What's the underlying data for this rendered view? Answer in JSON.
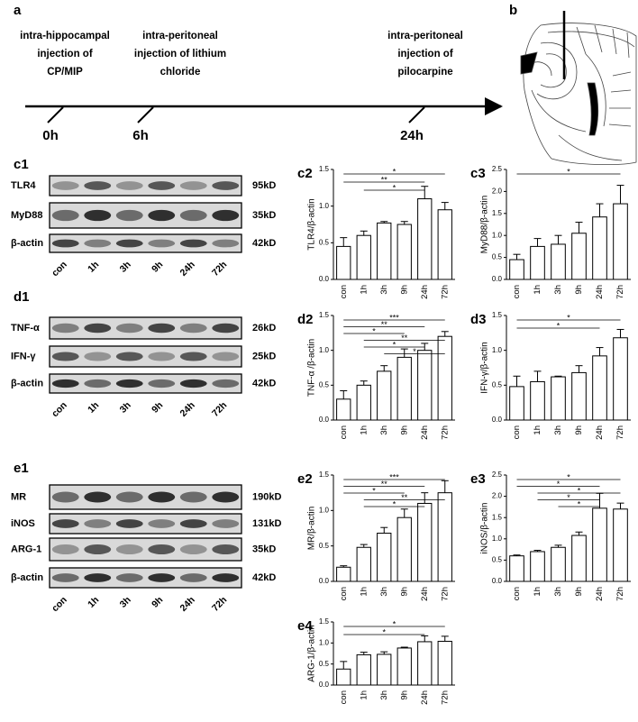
{
  "timeline": {
    "label": "a",
    "events": [
      {
        "lines": [
          "intra-hippocampal",
          "injection of",
          "CP/MIP"
        ],
        "time": "0h"
      },
      {
        "lines": [
          "intra-peritoneal",
          "injection of lithium",
          "chloride"
        ],
        "time": "6h"
      },
      {
        "lines": [
          "intra-peritoneal",
          "injection of",
          "pilocarpine"
        ],
        "time": "24h"
      }
    ]
  },
  "brain": {
    "label": "b"
  },
  "blots": [
    {
      "label": "c1",
      "rows": [
        {
          "name": "TLR4",
          "size": "95kD"
        },
        {
          "name": "MyD88",
          "size": "35kD"
        },
        {
          "name": "β-actin",
          "size": "42kD"
        }
      ],
      "lanes": [
        "con",
        "1h",
        "3h",
        "9h",
        "24h",
        "72h"
      ]
    },
    {
      "label": "d1",
      "rows": [
        {
          "name": "TNF-α",
          "size": "26kD"
        },
        {
          "name": "IFN-γ",
          "size": "25kD"
        },
        {
          "name": "β-actin",
          "size": "42kD"
        }
      ],
      "lanes": [
        "con",
        "1h",
        "3h",
        "9h",
        "24h",
        "72h"
      ]
    },
    {
      "label": "e1",
      "rows": [
        {
          "name": "MR",
          "size": "190kD"
        },
        {
          "name": "iNOS",
          "size": "131kD"
        },
        {
          "name": "ARG-1",
          "size": "35kD"
        },
        {
          "name": "β-actin",
          "size": "42kD"
        }
      ],
      "lanes": [
        "con",
        "1h",
        "3h",
        "9h",
        "24h",
        "72h"
      ]
    }
  ],
  "chart_data": [
    {
      "type": "bar",
      "label": "c2",
      "y_label": "TLR4/β-actin",
      "categories": [
        "con",
        "1h",
        "3h",
        "9h",
        "24h",
        "72h"
      ],
      "values": [
        0.45,
        0.6,
        0.77,
        0.75,
        1.1,
        0.95
      ],
      "errors": [
        0.12,
        0.06,
        0.02,
        0.04,
        0.17,
        0.1
      ],
      "ylim": [
        0,
        1.5
      ],
      "yticks": [
        {
          "value": 0,
          "label": "0.0"
        },
        0.5,
        {
          "value": 1,
          "label": "1.0"
        },
        1.5
      ],
      "color": "#ffffff",
      "significance": [
        {
          "from": "con",
          "to": "72h",
          "label": "*"
        },
        {
          "from": "con",
          "to": "24h",
          "label": "**"
        },
        {
          "from": "1h",
          "to": "24h",
          "label": "*"
        }
      ]
    },
    {
      "type": "bar",
      "label": "c3",
      "y_label": "MyD88/β-actin",
      "categories": [
        "con",
        "1h",
        "3h",
        "9h",
        "24h",
        "72h"
      ],
      "values": [
        0.45,
        0.75,
        0.8,
        1.05,
        1.42,
        1.72
      ],
      "errors": [
        0.12,
        0.18,
        0.2,
        0.25,
        0.3,
        0.42
      ],
      "ylim": [
        0,
        2.5
      ],
      "yticks": [
        {
          "value": 0,
          "label": "0.0"
        },
        0.5,
        {
          "value": 1,
          "label": "1.0"
        },
        1.5,
        {
          "value": 2,
          "label": "2.0"
        },
        2.5
      ],
      "color": "#ffffff",
      "significance": [
        {
          "from": "con",
          "to": "72h",
          "label": "*"
        }
      ]
    },
    {
      "type": "bar",
      "label": "d2",
      "y_label": "TNF-α /β-actin",
      "categories": [
        "con",
        "1h",
        "3h",
        "9h",
        "24h",
        "72h"
      ],
      "values": [
        0.3,
        0.5,
        0.7,
        0.9,
        1.0,
        1.2
      ],
      "errors": [
        0.12,
        0.06,
        0.08,
        0.12,
        0.1,
        0.07
      ],
      "ylim": [
        0,
        1.5
      ],
      "yticks": [
        {
          "value": 0,
          "label": "0.0"
        },
        0.5,
        {
          "value": 1,
          "label": "1.0"
        },
        1.5
      ],
      "color": "#ffffff",
      "significance": [
        {
          "from": "con",
          "to": "72h",
          "label": "***"
        },
        {
          "from": "con",
          "to": "24h",
          "label": "**"
        },
        {
          "from": "con",
          "to": "9h",
          "label": "*"
        },
        {
          "from": "1h",
          "to": "72h",
          "label": "**"
        },
        {
          "from": "1h",
          "to": "24h",
          "label": "*"
        },
        {
          "from": "3h",
          "to": "72h",
          "label": "*"
        }
      ]
    },
    {
      "type": "bar",
      "label": "d3",
      "y_label": "IFN-γ/β-actin",
      "categories": [
        "con",
        "1h",
        "3h",
        "9h",
        "24h",
        "72h"
      ],
      "values": [
        0.48,
        0.55,
        0.62,
        0.68,
        0.92,
        1.18
      ],
      "errors": [
        0.15,
        0.15,
        0.01,
        0.1,
        0.12,
        0.12
      ],
      "ylim": [
        0,
        1.5
      ],
      "yticks": [
        {
          "value": 0,
          "label": "0.0"
        },
        0.5,
        {
          "value": 1,
          "label": "1.0"
        },
        1.5
      ],
      "color": "#ffffff",
      "significance": [
        {
          "from": "con",
          "to": "72h",
          "label": "*"
        },
        {
          "from": "con",
          "to": "24h",
          "label": "*"
        }
      ]
    },
    {
      "type": "bar",
      "label": "e2",
      "y_label": "MR/β-actin",
      "categories": [
        "con",
        "1h",
        "3h",
        "9h",
        "24h",
        "72h"
      ],
      "values": [
        0.2,
        0.48,
        0.68,
        0.9,
        1.1,
        1.25
      ],
      "errors": [
        0.02,
        0.04,
        0.08,
        0.12,
        0.15,
        0.17
      ],
      "ylim": [
        0,
        1.5
      ],
      "yticks": [
        {
          "value": 0,
          "label": "0.0"
        },
        0.5,
        {
          "value": 1,
          "label": "1.0"
        },
        1.5
      ],
      "color": "#ffffff",
      "significance": [
        {
          "from": "con",
          "to": "72h",
          "label": "***"
        },
        {
          "from": "con",
          "to": "24h",
          "label": "**"
        },
        {
          "from": "con",
          "to": "9h",
          "label": "*"
        },
        {
          "from": "1h",
          "to": "72h",
          "label": "**"
        },
        {
          "from": "1h",
          "to": "24h",
          "label": "*"
        }
      ]
    },
    {
      "type": "bar",
      "label": "e3",
      "y_label": "iNOS/β-actin",
      "categories": [
        "con",
        "1h",
        "3h",
        "9h",
        "24h",
        "72h"
      ],
      "values": [
        0.6,
        0.7,
        0.8,
        1.08,
        1.72,
        1.7
      ],
      "errors": [
        0.02,
        0.03,
        0.05,
        0.08,
        0.35,
        0.14
      ],
      "ylim": [
        0,
        2.5
      ],
      "yticks": [
        {
          "value": 0,
          "label": "0.0"
        },
        0.5,
        {
          "value": 1,
          "label": "1.0"
        },
        1.5,
        {
          "value": 2,
          "label": "2.0"
        },
        2.5
      ],
      "color": "#ffffff",
      "significance": [
        {
          "from": "con",
          "to": "72h",
          "label": "*"
        },
        {
          "from": "con",
          "to": "24h",
          "label": "*"
        },
        {
          "from": "1h",
          "to": "72h",
          "label": "*"
        },
        {
          "from": "1h",
          "to": "24h",
          "label": "*"
        },
        {
          "from": "3h",
          "to": "24h",
          "label": "*"
        }
      ]
    },
    {
      "type": "bar",
      "label": "e4",
      "y_label": "ARG-1/β-actin",
      "categories": [
        "con",
        "1h",
        "3h",
        "9h",
        "24h",
        "72h"
      ],
      "values": [
        0.38,
        0.72,
        0.73,
        0.88,
        1.03,
        1.04
      ],
      "errors": [
        0.18,
        0.06,
        0.06,
        0.02,
        0.14,
        0.12
      ],
      "ylim": [
        0,
        1.5
      ],
      "yticks": [
        {
          "value": 0,
          "label": "0.0"
        },
        0.5,
        {
          "value": 1,
          "label": "1.0"
        },
        1.5
      ],
      "color": "#ffffff",
      "significance": [
        {
          "from": "con",
          "to": "72h",
          "label": "*"
        },
        {
          "from": "con",
          "to": "24h",
          "label": "*"
        }
      ]
    }
  ]
}
